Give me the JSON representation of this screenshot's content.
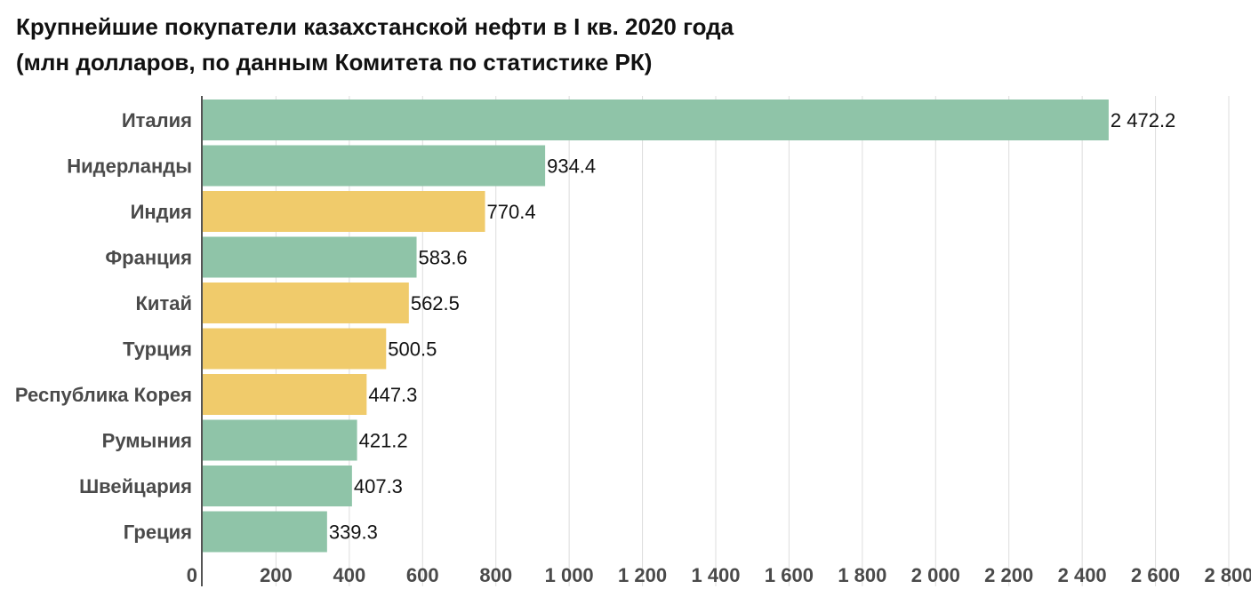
{
  "title": "Крупнейшие покупатели казахстанской нефти в I кв. 2020 года",
  "subtitle": "(млн долларов, по данным Комитета по статистике РК)",
  "colors": {
    "green": "#8fc4a8",
    "yellow": "#f0cb6b",
    "grid": "#dddddd",
    "axis": "#555555"
  },
  "chart_data": {
    "type": "bar",
    "orientation": "horizontal",
    "title": "Крупнейшие покупатели казахстанской нефти в I кв. 2020 года",
    "subtitle": "(млн долларов, по данным Комитета по статистике РК)",
    "categories": [
      "Италия",
      "Нидерланды",
      "Индия",
      "Франция",
      "Китай",
      "Турция",
      "Республика Корея",
      "Румыния",
      "Швейцария",
      "Греция"
    ],
    "values": [
      2472.2,
      934.4,
      770.4,
      583.6,
      562.5,
      500.5,
      447.3,
      421.2,
      407.3,
      339.3
    ],
    "value_labels": [
      "2 472.2",
      "934.4",
      "770.4",
      "583.6",
      "562.5",
      "500.5",
      "447.3",
      "421.2",
      "407.3",
      "339.3"
    ],
    "bar_colors": [
      "green",
      "green",
      "yellow",
      "green",
      "yellow",
      "yellow",
      "yellow",
      "green",
      "green",
      "green"
    ],
    "xlim": [
      0,
      2800
    ],
    "xticks": [
      0,
      200,
      400,
      600,
      800,
      1000,
      1200,
      1400,
      1600,
      1800,
      2000,
      2200,
      2400,
      2600,
      2800
    ],
    "xtick_labels": [
      "0",
      "200",
      "400",
      "600",
      "800",
      "1 000",
      "1 200",
      "1 400",
      "1 600",
      "1 800",
      "2 000",
      "2 200",
      "2 400",
      "2 600",
      "2 800"
    ],
    "grid": "vertical",
    "legend": "none"
  }
}
